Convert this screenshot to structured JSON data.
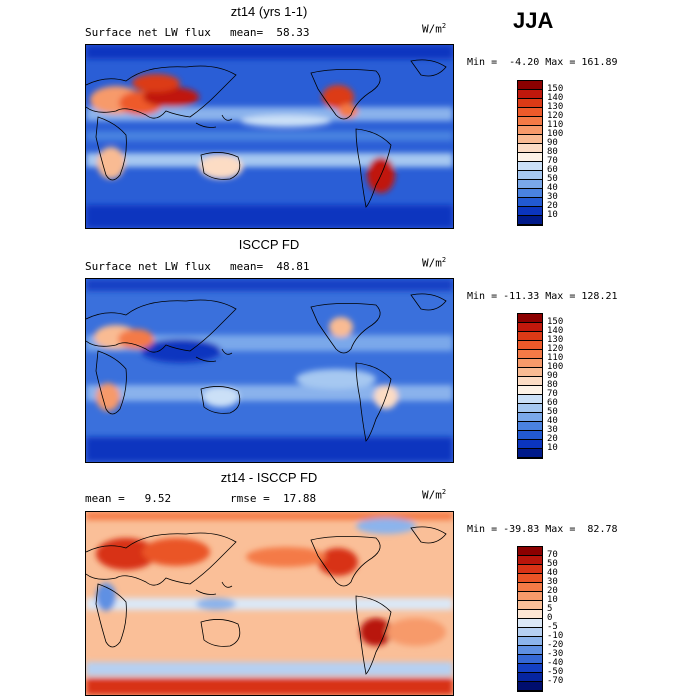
{
  "season_label": "JJA",
  "panels": [
    {
      "title": "zt14 (yrs 1-1)",
      "left_label": "Surface net LW flux",
      "center_label": "mean=  58.33",
      "unit_base": "W/m",
      "unit_exp": "2",
      "stats": "Min =  -4.20 Max = 161.89",
      "colorbar": {
        "ticks": [
          "150",
          "140",
          "130",
          "120",
          "110",
          "100",
          "90",
          "80",
          "70",
          "60",
          "50",
          "40",
          "30",
          "20",
          "10"
        ],
        "colors": [
          "#8b0000",
          "#c0180c",
          "#dc3a16",
          "#ee5a2a",
          "#f47a46",
          "#f79a6a",
          "#f9bb93",
          "#fcdcc4",
          "#fdf2e6",
          "#cbe0f7",
          "#a6c8f1",
          "#7aa8ea",
          "#4a82e0",
          "#2259d2",
          "#0b35bf",
          "#001a8a"
        ]
      }
    },
    {
      "title": "ISCCP FD",
      "left_label": "Surface net LW flux",
      "center_label": "mean=  48.81",
      "unit_base": "W/m",
      "unit_exp": "2",
      "stats": "Min = -11.33 Max = 128.21",
      "colorbar": {
        "ticks": [
          "150",
          "140",
          "130",
          "120",
          "110",
          "100",
          "90",
          "80",
          "70",
          "60",
          "50",
          "40",
          "30",
          "20",
          "10"
        ],
        "colors": [
          "#8b0000",
          "#c0180c",
          "#dc3a16",
          "#ee5a2a",
          "#f47a46",
          "#f79a6a",
          "#f9bb93",
          "#fcdcc4",
          "#fdf2e6",
          "#cbe0f7",
          "#a6c8f1",
          "#7aa8ea",
          "#4a82e0",
          "#2259d2",
          "#0b35bf",
          "#001a8a"
        ]
      }
    },
    {
      "title": "zt14 - ISCCP FD",
      "left_label": "mean =   9.52",
      "center_label": "rmse =  17.88",
      "unit_base": "W/m",
      "unit_exp": "2",
      "stats": "Min = -39.83 Max =  82.78",
      "colorbar": {
        "ticks": [
          "70",
          "50",
          "40",
          "30",
          "20",
          "10",
          "5",
          "0",
          "-5",
          "-10",
          "-20",
          "-30",
          "-40",
          "-50",
          "-70"
        ],
        "colors": [
          "#8b0000",
          "#b8150b",
          "#d83316",
          "#ea5426",
          "#f47a46",
          "#f79a6a",
          "#fabf98",
          "#fde6d4",
          "#dbe8f7",
          "#b6d0f2",
          "#8cb4ec",
          "#5f90e3",
          "#3568d6",
          "#1440c4",
          "#0625a0",
          "#000e6e"
        ]
      }
    }
  ]
}
